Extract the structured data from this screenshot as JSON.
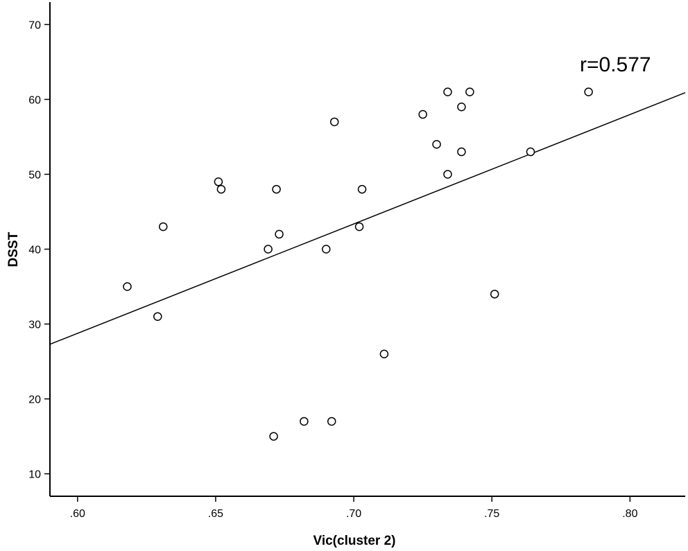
{
  "chart_data": {
    "type": "scatter",
    "title": "",
    "xlabel": "Vic(cluster 2)",
    "ylabel": "DSST",
    "xlim": [
      0.59,
      0.82
    ],
    "ylim": [
      7,
      73
    ],
    "x_ticks": [
      0.6,
      0.65,
      0.7,
      0.75,
      0.8
    ],
    "x_tick_labels": [
      ".60",
      ".65",
      ".70",
      ".75",
      ".80"
    ],
    "y_ticks": [
      10,
      20,
      30,
      40,
      50,
      60,
      70
    ],
    "y_tick_labels": [
      "10",
      "20",
      "30",
      "40",
      "50",
      "60",
      "70"
    ],
    "grid": false,
    "annotation": "r=0.577",
    "points": [
      {
        "x": 0.618,
        "y": 35
      },
      {
        "x": 0.629,
        "y": 31
      },
      {
        "x": 0.631,
        "y": 43
      },
      {
        "x": 0.651,
        "y": 49
      },
      {
        "x": 0.652,
        "y": 48
      },
      {
        "x": 0.669,
        "y": 40
      },
      {
        "x": 0.671,
        "y": 15
      },
      {
        "x": 0.672,
        "y": 48
      },
      {
        "x": 0.673,
        "y": 42
      },
      {
        "x": 0.682,
        "y": 17
      },
      {
        "x": 0.69,
        "y": 40
      },
      {
        "x": 0.692,
        "y": 17
      },
      {
        "x": 0.693,
        "y": 57
      },
      {
        "x": 0.702,
        "y": 43
      },
      {
        "x": 0.703,
        "y": 48
      },
      {
        "x": 0.711,
        "y": 26
      },
      {
        "x": 0.725,
        "y": 58
      },
      {
        "x": 0.73,
        "y": 54
      },
      {
        "x": 0.734,
        "y": 61
      },
      {
        "x": 0.734,
        "y": 50
      },
      {
        "x": 0.739,
        "y": 59
      },
      {
        "x": 0.739,
        "y": 53
      },
      {
        "x": 0.742,
        "y": 61
      },
      {
        "x": 0.751,
        "y": 34
      },
      {
        "x": 0.764,
        "y": 53
      },
      {
        "x": 0.785,
        "y": 61
      }
    ],
    "fit_line": {
      "x": [
        0.59,
        0.82
      ],
      "y": [
        27.3,
        60.9
      ]
    }
  }
}
